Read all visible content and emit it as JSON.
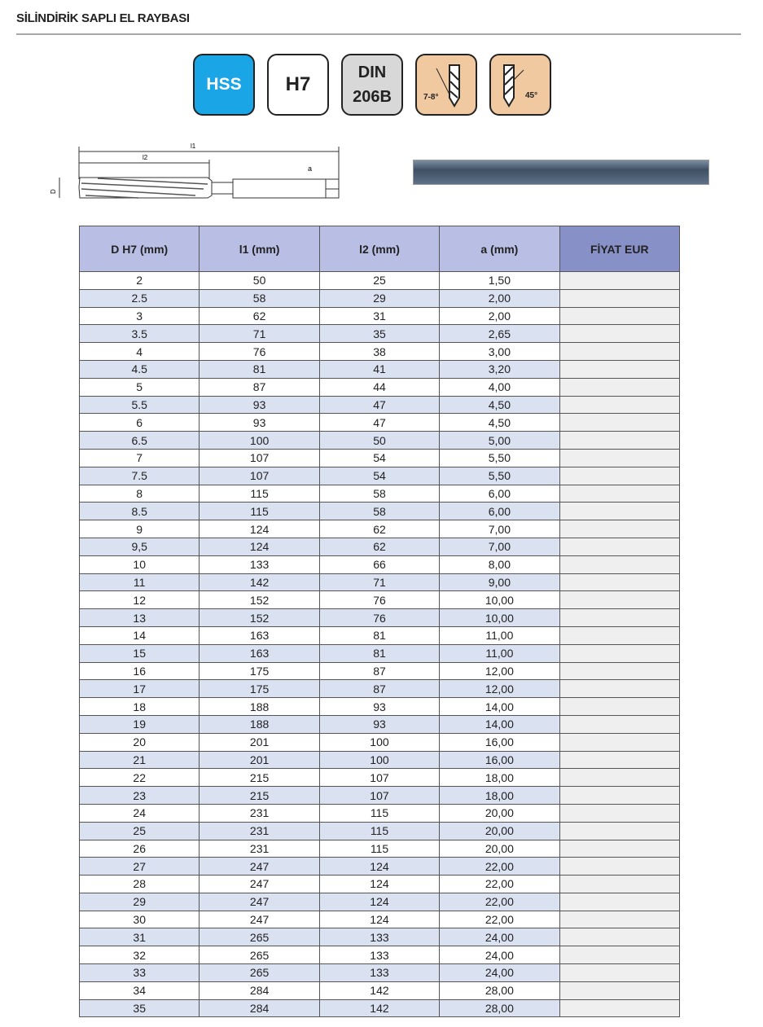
{
  "title": "SİLİNDİRİK SAPLI EL RAYBASI",
  "badges": {
    "material": "HSS",
    "tolerance": "H7",
    "standard_line1": "DIN",
    "standard_line2": "206B",
    "helix_angle": "7-8°",
    "chamfer_angle": "45°"
  },
  "drawing": {
    "l1": "l1",
    "l2": "l2",
    "a": "a",
    "d": "D"
  },
  "table": {
    "headers": [
      "D H7 (mm)",
      "l1 (mm)",
      "l2 (mm)",
      "a (mm)",
      "FİYAT EUR"
    ],
    "rows": [
      [
        "2",
        "50",
        "25",
        "1,50"
      ],
      [
        "2.5",
        "58",
        "29",
        "2,00"
      ],
      [
        "3",
        "62",
        "31",
        "2,00"
      ],
      [
        "3.5",
        "71",
        "35",
        "2,65"
      ],
      [
        "4",
        "76",
        "38",
        "3,00"
      ],
      [
        "4.5",
        "81",
        "41",
        "3,20"
      ],
      [
        "5",
        "87",
        "44",
        "4,00"
      ],
      [
        "5.5",
        "93",
        "47",
        "4,50"
      ],
      [
        "6",
        "93",
        "47",
        "4,50"
      ],
      [
        "6.5",
        "100",
        "50",
        "5,00"
      ],
      [
        "7",
        "107",
        "54",
        "5,50"
      ],
      [
        "7.5",
        "107",
        "54",
        "5,50"
      ],
      [
        "8",
        "115",
        "58",
        "6,00"
      ],
      [
        "8.5",
        "115",
        "58",
        "6,00"
      ],
      [
        "9",
        "124",
        "62",
        "7,00"
      ],
      [
        "9,5",
        "124",
        "62",
        "7,00"
      ],
      [
        "10",
        "133",
        "66",
        "8,00"
      ],
      [
        "11",
        "142",
        "71",
        "9,00"
      ],
      [
        "12",
        "152",
        "76",
        "10,00"
      ],
      [
        "13",
        "152",
        "76",
        "10,00"
      ],
      [
        "14",
        "163",
        "81",
        "11,00"
      ],
      [
        "15",
        "163",
        "81",
        "11,00"
      ],
      [
        "16",
        "175",
        "87",
        "12,00"
      ],
      [
        "17",
        "175",
        "87",
        "12,00"
      ],
      [
        "18",
        "188",
        "93",
        "14,00"
      ],
      [
        "19",
        "188",
        "93",
        "14,00"
      ],
      [
        "20",
        "201",
        "100",
        "16,00"
      ],
      [
        "21",
        "201",
        "100",
        "16,00"
      ],
      [
        "22",
        "215",
        "107",
        "18,00"
      ],
      [
        "23",
        "215",
        "107",
        "18,00"
      ],
      [
        "24",
        "231",
        "115",
        "20,00"
      ],
      [
        "25",
        "231",
        "115",
        "20,00"
      ],
      [
        "26",
        "231",
        "115",
        "20,00"
      ],
      [
        "27",
        "247",
        "124",
        "22,00"
      ],
      [
        "28",
        "247",
        "124",
        "22,00"
      ],
      [
        "29",
        "247",
        "124",
        "22,00"
      ],
      [
        "30",
        "247",
        "124",
        "22,00"
      ],
      [
        "31",
        "265",
        "133",
        "24,00"
      ],
      [
        "32",
        "265",
        "133",
        "24,00"
      ],
      [
        "33",
        "265",
        "133",
        "24,00"
      ],
      [
        "34",
        "284",
        "142",
        "28,00"
      ],
      [
        "35",
        "284",
        "142",
        "28,00"
      ]
    ]
  }
}
